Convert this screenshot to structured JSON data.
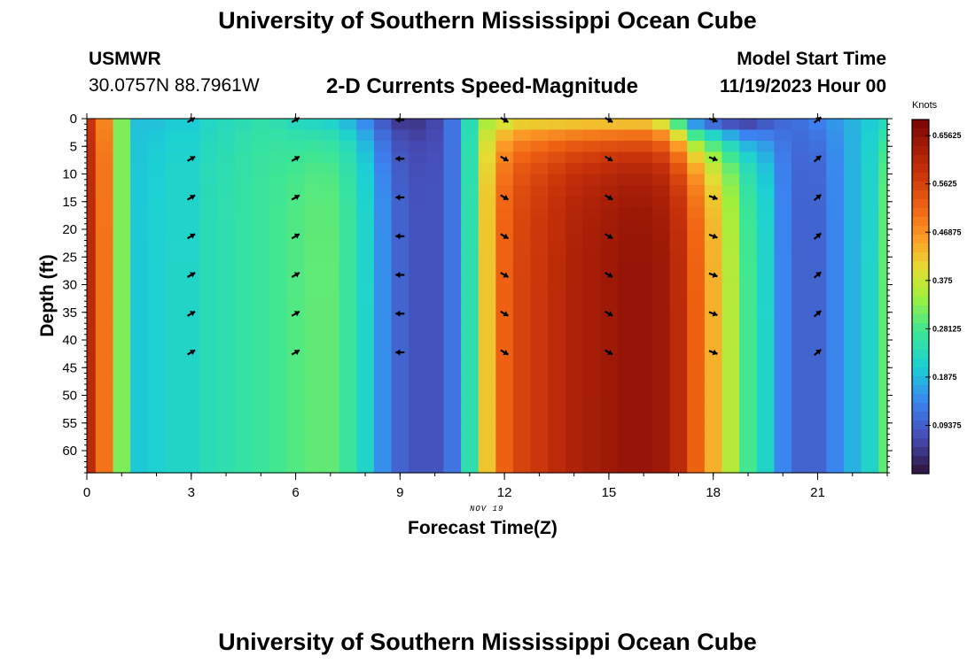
{
  "header": {
    "title": "University of Southern Mississippi Ocean Cube",
    "station_id": "USMWR",
    "coords": "30.0757N  88.7961W",
    "subtitle": "2-D Currents Speed-Magnitude",
    "model_start_label": "Model Start Time",
    "model_start_value": "11/19/2023 Hour 00"
  },
  "footer": {
    "title": "University of Southern Mississippi Ocean Cube"
  },
  "chart_data": {
    "type": "heatmap",
    "title": "2-D Currents Speed-Magnitude",
    "xlabel": "Forecast Time(Z)",
    "ylabel": "Depth (ft)",
    "date_label": "NOV 19",
    "xlim": [
      0,
      23
    ],
    "ylim": [
      0,
      64
    ],
    "x_ticks": [
      "0",
      "3",
      "6",
      "9",
      "12",
      "15",
      "18",
      "21"
    ],
    "y_ticks": [
      "0",
      "5",
      "10",
      "15",
      "20",
      "25",
      "30",
      "35",
      "40",
      "45",
      "50",
      "55",
      "60"
    ],
    "colorbar": {
      "title": "Knots",
      "ticks": [
        "0.65625",
        "0.5625",
        "0.46875",
        "0.375",
        "0.28125",
        "0.1875",
        "0.09375"
      ],
      "range": [
        0.0,
        0.6875
      ]
    },
    "hours": [
      0,
      0.5,
      1,
      1.5,
      2,
      2.5,
      3,
      3.5,
      4,
      4.5,
      5,
      5.5,
      6,
      6.5,
      7,
      7.5,
      8,
      8.5,
      9,
      9.5,
      10,
      10.5,
      11,
      11.5,
      12,
      12.5,
      13,
      13.5,
      14,
      14.5,
      15,
      15.5,
      16,
      16.5,
      17,
      17.5,
      18,
      18.5,
      19,
      19.5,
      20,
      20.5,
      21,
      21.5,
      22,
      22.5,
      23
    ],
    "speed_bottom": [
      0.6,
      0.5,
      0.32,
      0.2,
      0.21,
      0.22,
      0.22,
      0.24,
      0.25,
      0.26,
      0.27,
      0.28,
      0.29,
      0.3,
      0.3,
      0.27,
      0.22,
      0.15,
      0.1,
      0.08,
      0.08,
      0.12,
      0.25,
      0.42,
      0.52,
      0.56,
      0.58,
      0.6,
      0.62,
      0.63,
      0.64,
      0.65,
      0.65,
      0.64,
      0.6,
      0.52,
      0.44,
      0.36,
      0.28,
      0.22,
      0.14,
      0.1,
      0.1,
      0.14,
      0.18,
      0.22,
      0.3
    ],
    "speed_surface": [
      0.58,
      0.48,
      0.32,
      0.19,
      0.19,
      0.2,
      0.2,
      0.22,
      0.23,
      0.24,
      0.25,
      0.24,
      0.22,
      0.21,
      0.2,
      0.17,
      0.13,
      0.08,
      0.04,
      0.04,
      0.06,
      0.12,
      0.24,
      0.34,
      0.36,
      0.38,
      0.38,
      0.38,
      0.38,
      0.38,
      0.38,
      0.38,
      0.38,
      0.34,
      0.22,
      0.08,
      0.04,
      0.02,
      0.02,
      0.06,
      0.1,
      0.12,
      0.14,
      0.16,
      0.18,
      0.2,
      0.22
    ],
    "arrows": {
      "hours": [
        3,
        6,
        9,
        12,
        15,
        18,
        21
      ],
      "depths": [
        0,
        7,
        14,
        21,
        28,
        35,
        42
      ],
      "angle_deg": [
        -30,
        -30,
        180,
        30,
        30,
        20,
        -40
      ]
    }
  }
}
